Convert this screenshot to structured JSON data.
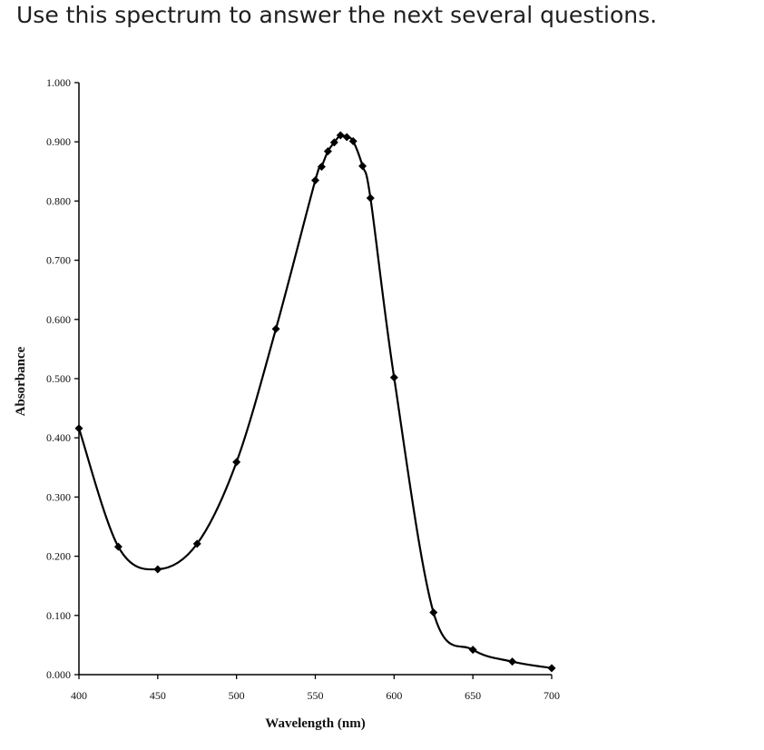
{
  "question": {
    "text": "Use this spectrum to answer the next several questions."
  },
  "chart_data": {
    "type": "line",
    "title": "",
    "xlabel": "Wavelength (nm)",
    "ylabel": "Absorbance",
    "xlim": [
      400,
      700
    ],
    "ylim": [
      0,
      1
    ],
    "xticks": [
      400,
      450,
      500,
      550,
      600,
      650,
      700
    ],
    "xtick_labels": [
      "400",
      "450",
      "500",
      "550",
      "600",
      "650",
      "700"
    ],
    "yticks": [
      0,
      0.1,
      0.2,
      0.3,
      0.4,
      0.5,
      0.6,
      0.7,
      0.8,
      0.9,
      1.0
    ],
    "ytick_labels": [
      "0.000",
      "0.100",
      "0.200",
      "0.300",
      "0.400",
      "0.500",
      "0.600",
      "0.700",
      "0.800",
      "0.900",
      "1.000"
    ],
    "grid": false,
    "marker": "diamond",
    "series": [
      {
        "x": [
          400,
          425,
          450,
          475,
          500,
          525,
          550,
          554,
          558,
          562,
          566,
          570,
          574,
          580,
          585,
          600,
          625,
          650,
          675,
          700
        ],
        "y": [
          0.416,
          0.216,
          0.178,
          0.221,
          0.359,
          0.584,
          0.835,
          0.858,
          0.884,
          0.899,
          0.911,
          0.908,
          0.901,
          0.859,
          0.805,
          0.502,
          0.105,
          0.042,
          0.022,
          0.011
        ],
        "color": "#000000"
      }
    ]
  }
}
